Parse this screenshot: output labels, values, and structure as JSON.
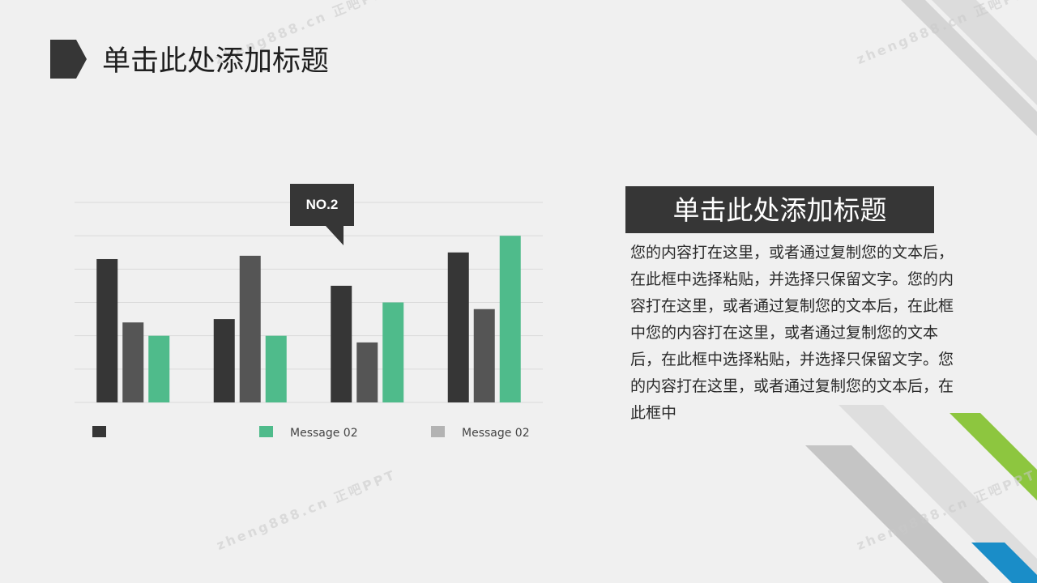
{
  "slide": {
    "title": "单击此处添加标题",
    "side_heading": "单击此处添加标题",
    "body_text": "您的内容打在这里，或者通过复制您的文本后，在此框中选择粘贴，并选择只保留文字。您的内容打在这里，或者通过复制您的文本后，在此框中您的内容打在这里，或者通过复制您的文本后，在此框中选择粘贴，并选择只保留文字。您的内容打在这里，或者通过复制您的文本后，在此框中",
    "callout": "NO.2",
    "watermark": "zheng888.cn 正吧PPT"
  },
  "colors": {
    "background": "#f0f0f0",
    "series_dark": "#363636",
    "series_gray": "#555555",
    "series_green": "#4fbb8b",
    "legend_gray": "#b3b3b3",
    "heading_box": "#363636",
    "accent_green": "#8dc63f",
    "accent_blue": "#1a8dc8"
  },
  "chart_data": {
    "type": "bar",
    "categories": [
      "",
      "",
      "",
      ""
    ],
    "series": [
      {
        "name": "",
        "color": "#363636",
        "values": [
          4.3,
          2.5,
          3.5,
          4.5
        ]
      },
      {
        "name": "Message 02",
        "color": "#555555",
        "values": [
          2.4,
          4.4,
          1.8,
          2.8
        ]
      },
      {
        "name": "Message 02",
        "color": "#4fbb8b",
        "values": [
          2.0,
          2.0,
          3.0,
          5.0
        ]
      }
    ],
    "legend": [
      {
        "label": "",
        "color": "#363636"
      },
      {
        "label": "Message 02",
        "color": "#4fbb8b"
      },
      {
        "label": "Message 02",
        "color": "#b3b3b3"
      }
    ],
    "ylim": [
      0,
      6
    ],
    "grid": true,
    "legend_position": "bottom",
    "title": "",
    "xlabel": "",
    "ylabel": ""
  }
}
